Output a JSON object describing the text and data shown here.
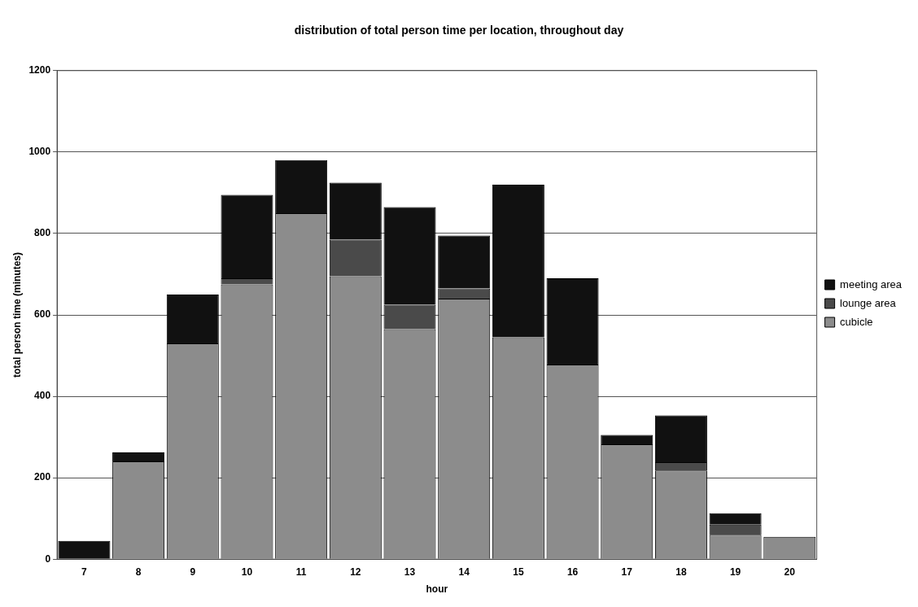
{
  "chart_data": {
    "type": "bar",
    "title": "distribution of total person time per location, throughout day",
    "xlabel": "hour",
    "ylabel": "total person time (minutes)",
    "categories": [
      "7",
      "8",
      "9",
      "10",
      "11",
      "12",
      "13",
      "14",
      "15",
      "16",
      "17",
      "18",
      "19",
      "20"
    ],
    "stacked": true,
    "series": [
      {
        "name": "cubicle",
        "color": "#8c8c8c",
        "values": [
          0,
          240,
          530,
          675,
          850,
          695,
          565,
          640,
          545,
          478,
          282,
          218,
          60,
          55
        ]
      },
      {
        "name": "lounge area",
        "color": "#4a4a4a",
        "values": [
          0,
          0,
          0,
          15,
          0,
          90,
          60,
          25,
          0,
          0,
          0,
          20,
          25,
          0
        ]
      },
      {
        "name": "meeting area",
        "color": "#111111",
        "values": [
          45,
          22,
          120,
          205,
          130,
          140,
          240,
          130,
          375,
          212,
          23,
          115,
          28,
          0
        ]
      }
    ],
    "ylim": [
      0,
      1200
    ],
    "yticks": [
      0,
      200,
      400,
      600,
      800,
      1000,
      1200
    ],
    "grid": "y",
    "legend": "right"
  }
}
